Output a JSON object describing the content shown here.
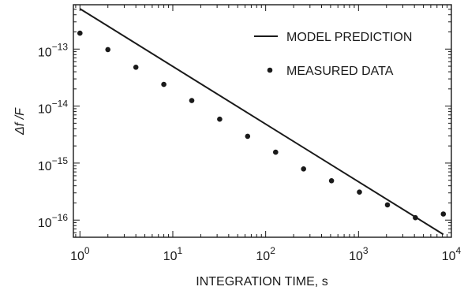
{
  "chart_data": {
    "type": "line",
    "xlabel": "INTEGRATION TIME, s",
    "ylabel": "Δf /F",
    "x_scale": "log",
    "y_scale": "log",
    "xlim": [
      0.85,
      10000
    ],
    "ylim": [
      5e-17,
      6e-13
    ],
    "grid": false,
    "legend_position": "top-right",
    "x_ticks": [
      {
        "value": 1,
        "base": "10",
        "exp": "0"
      },
      {
        "value": 10,
        "base": "10",
        "exp": "1"
      },
      {
        "value": 100,
        "base": "10",
        "exp": "2"
      },
      {
        "value": 1000,
        "base": "10",
        "exp": "3"
      },
      {
        "value": 10000,
        "base": "10",
        "exp": "4"
      }
    ],
    "y_ticks": [
      {
        "value": 1e-13,
        "base": "10",
        "exp": "−13"
      },
      {
        "value": 1e-14,
        "base": "10",
        "exp": "−14"
      },
      {
        "value": 1e-15,
        "base": "10",
        "exp": "−15"
      },
      {
        "value": 1e-16,
        "base": "10",
        "exp": "−16"
      }
    ],
    "series": [
      {
        "name": "MODEL PREDICTION",
        "style": "line",
        "x": [
          1,
          8192
        ],
        "y": [
          5.1e-13,
          5.6e-17
        ]
      },
      {
        "name": "MEASURED DATA",
        "style": "points",
        "x": [
          1,
          2,
          4,
          8,
          16,
          32,
          64,
          128,
          256,
          512,
          1024,
          2048,
          4096,
          8192
        ],
        "y": [
          1.9e-13,
          9.8e-14,
          4.8e-14,
          2.4e-14,
          1.25e-14,
          5.9e-15,
          2.95e-15,
          1.55e-15,
          7.9e-16,
          4.9e-16,
          3.1e-16,
          1.85e-16,
          1.1e-16,
          1.28e-16
        ]
      }
    ]
  }
}
